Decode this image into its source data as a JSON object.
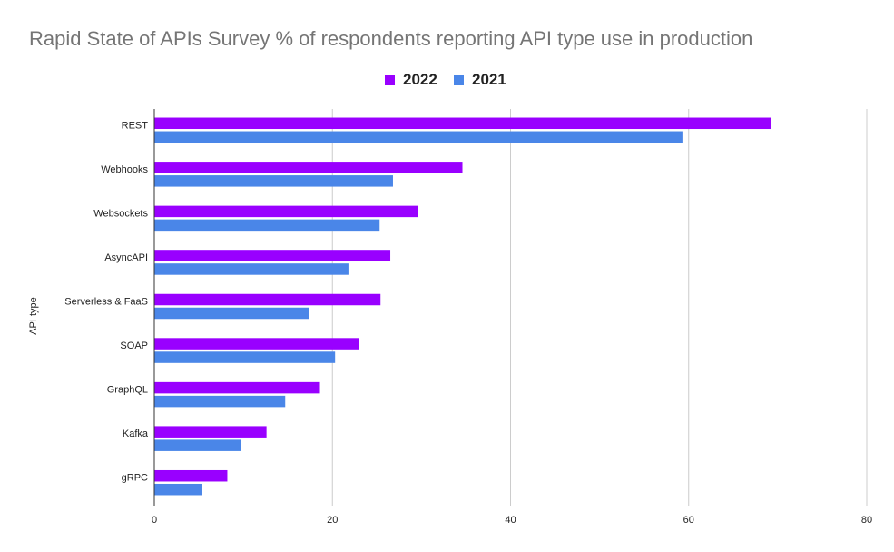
{
  "chart_data": {
    "type": "bar",
    "orientation": "horizontal",
    "title": "Rapid State of APIs Survey % of respondents reporting API type use in production",
    "xlabel": "",
    "ylabel": "API type",
    "categories": [
      "REST",
      "Webhooks",
      "Websockets",
      "AsyncAPI",
      "Serverless & FaaS",
      "SOAP",
      "GraphQL",
      "Kafka",
      "gRPC"
    ],
    "series": [
      {
        "name": "2022",
        "color": "#9900ff",
        "values": [
          69.3,
          34.6,
          29.6,
          26.5,
          25.4,
          23.0,
          18.6,
          12.6,
          8.2
        ]
      },
      {
        "name": "2021",
        "color": "#4a86e8",
        "values": [
          59.3,
          26.8,
          25.3,
          21.8,
          17.4,
          20.3,
          14.7,
          9.7,
          5.4
        ]
      }
    ],
    "xlim": [
      0,
      80
    ],
    "xticks": [
      "0",
      "20",
      "40",
      "60",
      "80"
    ],
    "grid": true,
    "legend_position": "top-center"
  }
}
